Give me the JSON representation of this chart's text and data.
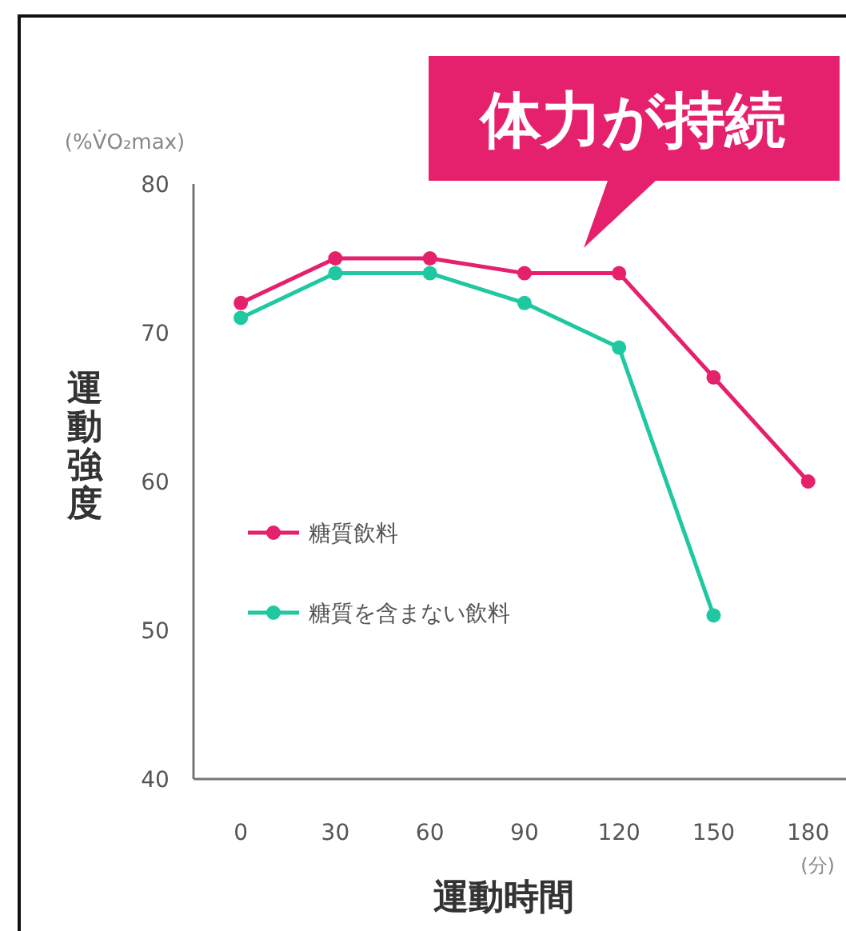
{
  "chart_data": {
    "type": "line",
    "xlabel": "運動時間",
    "ylabel": "運動強度",
    "x": [
      0,
      30,
      60,
      90,
      120,
      150,
      180
    ],
    "series": [
      {
        "name": "糖質飲料",
        "color": "#e5216d",
        "values": [
          72,
          75,
          75,
          74,
          74,
          67,
          60
        ]
      },
      {
        "name": "糖質を含まない飲料",
        "color": "#1fc8a0",
        "values": [
          71,
          74,
          74,
          72,
          69,
          51,
          null
        ]
      }
    ],
    "xlim": [
      -15,
      192
    ],
    "xticks": [
      0,
      30,
      60,
      90,
      120,
      150,
      180
    ],
    "ylim": [
      40,
      80
    ],
    "yticks": [
      40,
      50,
      60,
      70,
      80
    ],
    "grid": false,
    "legend": "left",
    "marker": "circle",
    "line_style": "solid",
    "annotations": [
      "(%V̇O₂max)",
      "(分)",
      "体力が持続"
    ]
  }
}
